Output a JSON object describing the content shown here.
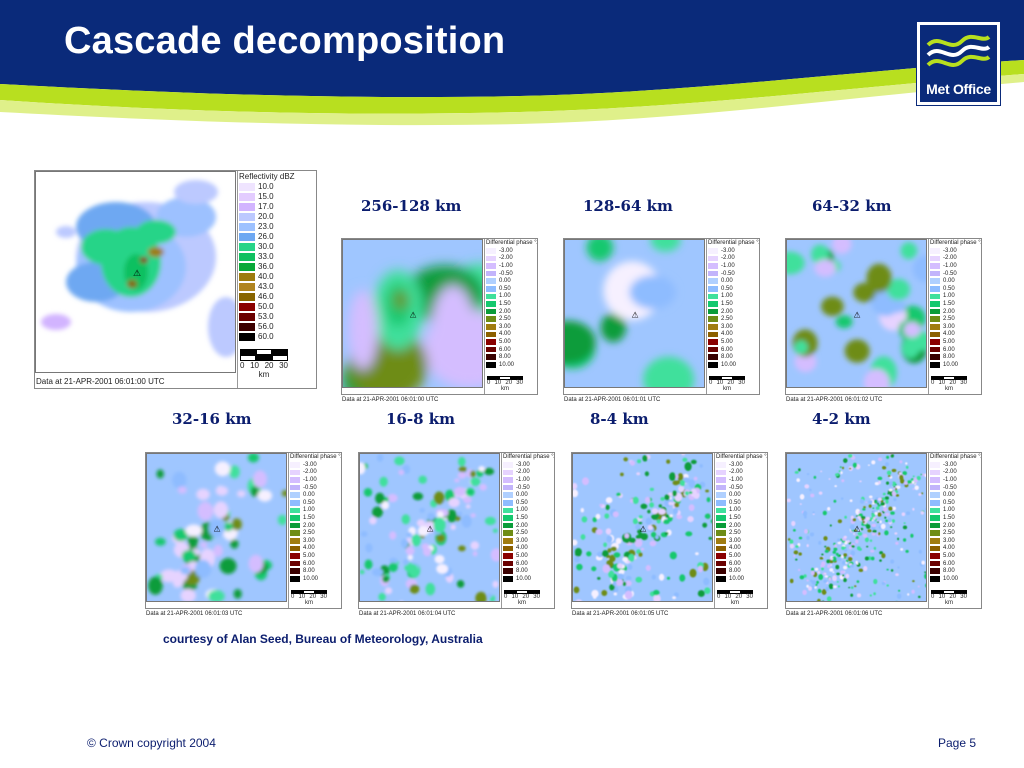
{
  "slide": {
    "title": "Cascade decomposition",
    "logo_text": "Met Office",
    "credit": "courtesy of Alan Seed, Bureau of Meteorology, Australia",
    "copyright": "© Crown copyright 2004",
    "page": "Page 5",
    "colors": {
      "navy": "#0a2a7a",
      "lime": "#b8df1f",
      "caption": "#0b1d6e"
    }
  },
  "reflectivity": {
    "legend_title": "Reflectivity dBZ",
    "levels": [
      "10.0",
      "15.0",
      "17.0",
      "20.0",
      "23.0",
      "26.0",
      "30.0",
      "33.0",
      "36.0",
      "40.0",
      "43.0",
      "46.0",
      "50.0",
      "53.0",
      "56.0",
      "60.0"
    ],
    "colors": [
      "#efe4ff",
      "#e3ccff",
      "#d2b4ff",
      "#bcc9ff",
      "#9dc1ff",
      "#6ea8f2",
      "#27d488",
      "#10c060",
      "#08a838",
      "#9d7b0e",
      "#b08420",
      "#886400",
      "#8a0000",
      "#6a0000",
      "#3c0000",
      "#000000"
    ],
    "scale_ticks": [
      "0",
      "10",
      "20",
      "30"
    ],
    "scale_unit": "km",
    "timestamp": "Data at 21-APR-2001 06:01:00 UTC"
  },
  "phase_legend": {
    "title": "Differential phase °/km",
    "levels": [
      "-3.00",
      "-2.00",
      "-1.00",
      "-0.50",
      "0.00",
      "0.50",
      "1.00",
      "1.50",
      "2.00",
      "2.50",
      "3.00",
      "4.00",
      "5.00",
      "6.00",
      "8.00",
      "10.00"
    ],
    "colors": [
      "#f6f0ff",
      "#e6d3ff",
      "#d4bdff",
      "#c2b4fb",
      "#b0d0ff",
      "#8ebcff",
      "#3fe09c",
      "#14c86e",
      "#0a9c3a",
      "#6e8c16",
      "#a07c10",
      "#8c6000",
      "#8a0000",
      "#6a0000",
      "#3a0000",
      "#000000"
    ],
    "scale_ticks": [
      "0",
      "10",
      "20",
      "30"
    ],
    "scale_unit": "km"
  },
  "panels": [
    {
      "caption": "256-128 km",
      "timestamp": "Data at 21-APR-2001 06:01:00 UTC"
    },
    {
      "caption": "128-64 km",
      "timestamp": "Data at 21-APR-2001 06:01:01 UTC"
    },
    {
      "caption": "64-32 km",
      "timestamp": "Data at 21-APR-2001 06:01:02 UTC"
    },
    {
      "caption": "32-16 km",
      "timestamp": "Data at 21-APR-2001 06:01:03 UTC"
    },
    {
      "caption": "16-8 km",
      "timestamp": "Data at 21-APR-2001 06:01:04 UTC"
    },
    {
      "caption": "8-4 km",
      "timestamp": "Data at 21-APR-2001 06:01:05 UTC"
    },
    {
      "caption": "4-2 km",
      "timestamp": "Data at 21-APR-2001 06:01:06 UTC"
    }
  ]
}
